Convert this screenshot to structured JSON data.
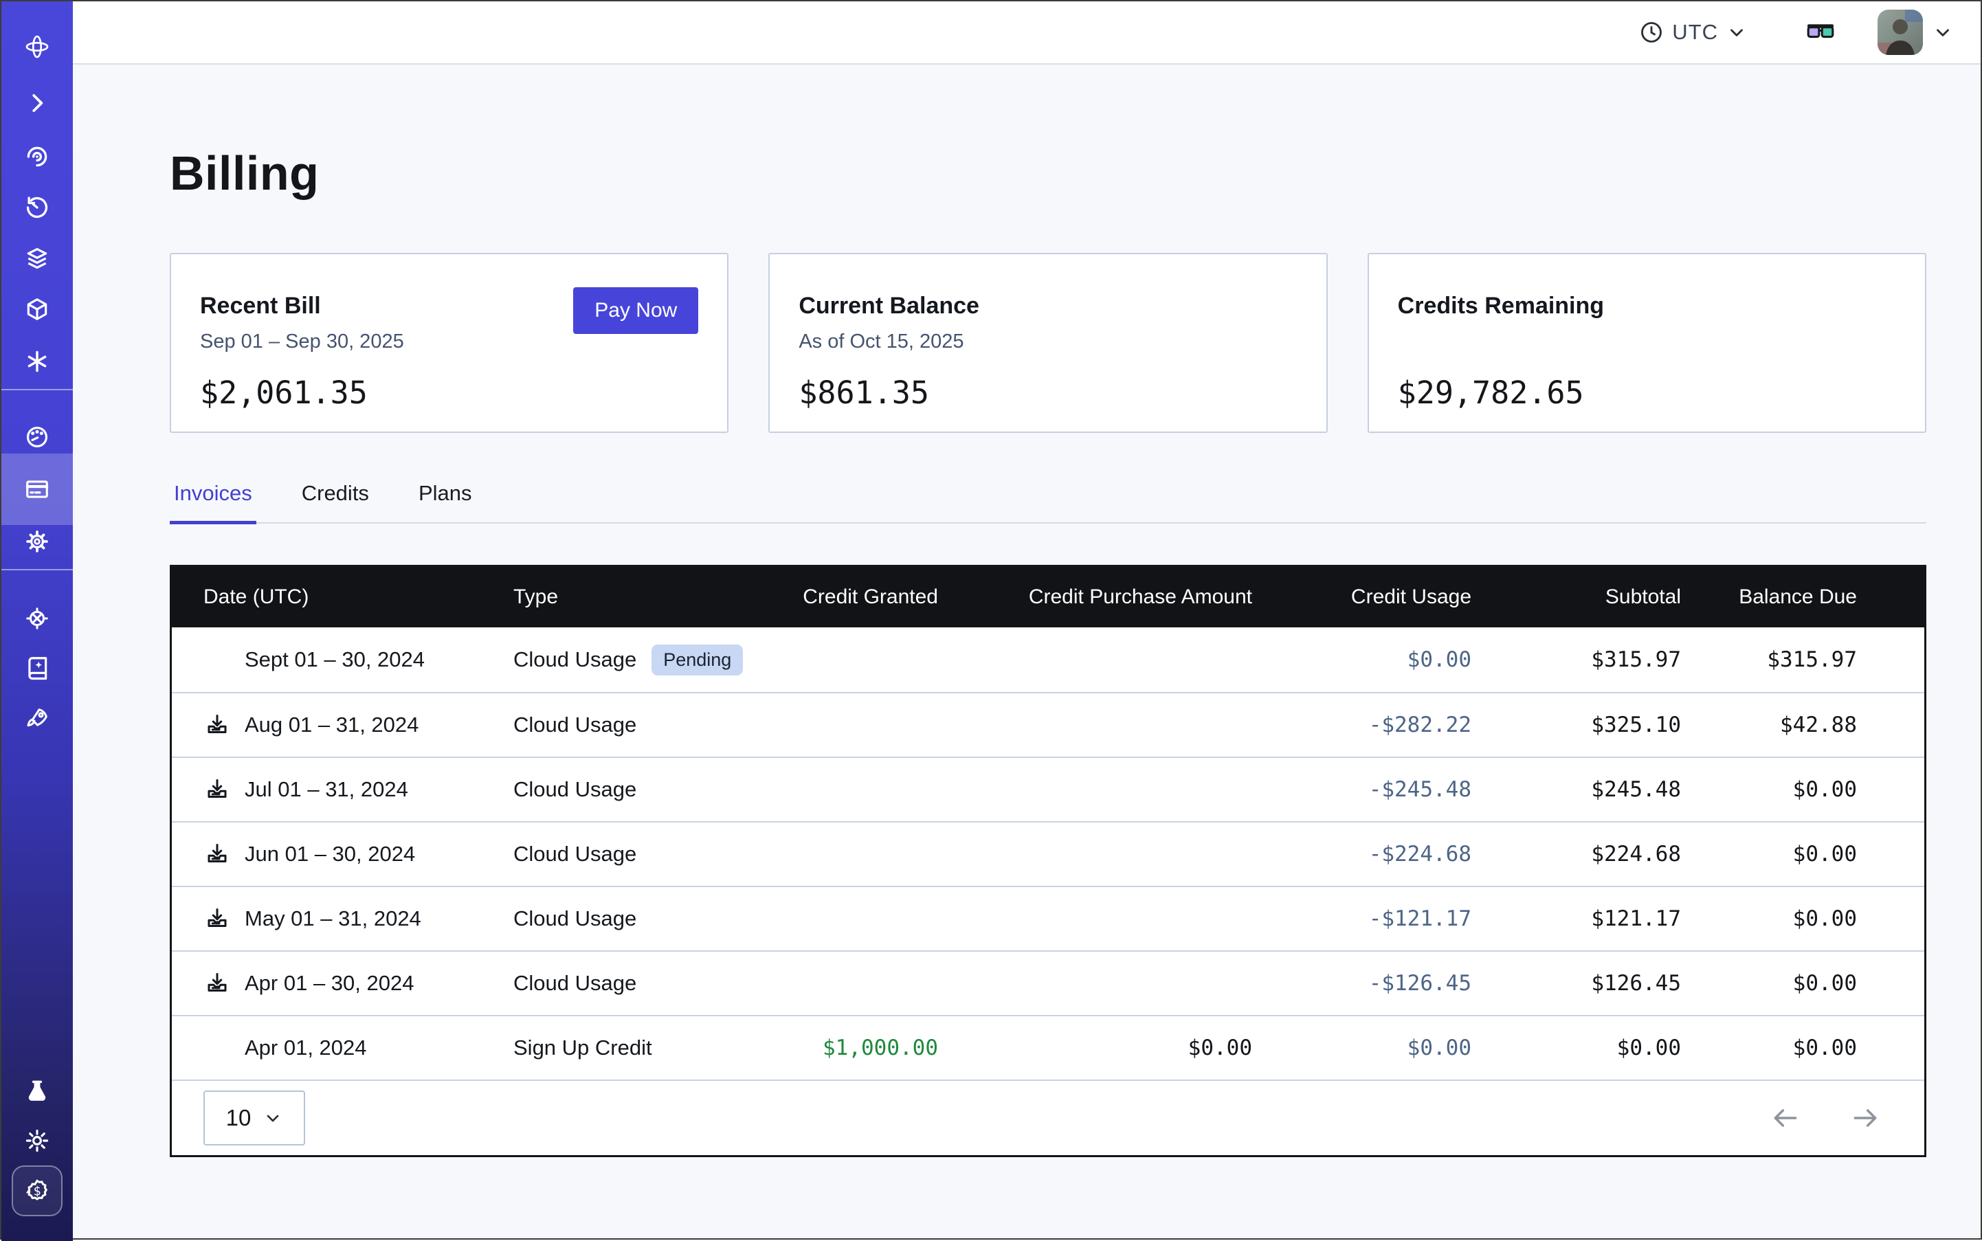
{
  "topbar": {
    "timezone_label": "UTC",
    "icons": [
      "clock-icon",
      "chevron-down-icon",
      "vision-glasses-icon",
      "user-avatar",
      "chevron-down-icon"
    ]
  },
  "sidebar": {
    "icons": [
      "brand-logo",
      "expand-chevron",
      "observe-eye",
      "history-timer",
      "layers",
      "cube",
      "asterisk",
      "usage-gauge",
      "billing-card",
      "settings-gear",
      "helm-wheel",
      "docs-book",
      "rocket",
      "labs-flask",
      "theme-sun",
      "credits-dollar-badge"
    ],
    "active_item": "billing-card"
  },
  "page": {
    "title": "Billing"
  },
  "cards": {
    "recent_bill": {
      "title": "Recent Bill",
      "period": "Sep 01 – Sep 30, 2025",
      "amount": "$2,061.35",
      "action_label": "Pay Now"
    },
    "current_balance": {
      "title": "Current Balance",
      "as_of": "As of Oct 15, 2025",
      "amount": "$861.35"
    },
    "credits_remaining": {
      "title": "Credits Remaining",
      "amount": "$29,782.65"
    }
  },
  "tabs": [
    {
      "label": "Invoices",
      "active": true
    },
    {
      "label": "Credits",
      "active": false
    },
    {
      "label": "Plans",
      "active": false
    }
  ],
  "table": {
    "columns": [
      "Date (UTC)",
      "Type",
      "Credit Granted",
      "Credit Purchase Amount",
      "Credit Usage",
      "Subtotal",
      "Balance Due"
    ],
    "rows": [
      {
        "date": "Sept 01 – 30, 2024",
        "type": "Cloud Usage",
        "badge": "Pending",
        "downloadable": false,
        "credit_granted": "",
        "credit_purchase": "",
        "credit_usage": "$0.00",
        "subtotal": "$315.97",
        "balance_due": "$315.97"
      },
      {
        "date": "Aug 01 – 31, 2024",
        "type": "Cloud Usage",
        "badge": "",
        "downloadable": true,
        "credit_granted": "",
        "credit_purchase": "",
        "credit_usage": "-$282.22",
        "subtotal": "$325.10",
        "balance_due": "$42.88"
      },
      {
        "date": "Jul 01 – 31, 2024",
        "type": "Cloud Usage",
        "badge": "",
        "downloadable": true,
        "credit_granted": "",
        "credit_purchase": "",
        "credit_usage": "-$245.48",
        "subtotal": "$245.48",
        "balance_due": "$0.00"
      },
      {
        "date": "Jun 01 – 30, 2024",
        "type": "Cloud Usage",
        "badge": "",
        "downloadable": true,
        "credit_granted": "",
        "credit_purchase": "",
        "credit_usage": "-$224.68",
        "subtotal": "$224.68",
        "balance_due": "$0.00"
      },
      {
        "date": "May 01 – 31, 2024",
        "type": "Cloud Usage",
        "badge": "",
        "downloadable": true,
        "credit_granted": "",
        "credit_purchase": "",
        "credit_usage": "-$121.17",
        "subtotal": "$121.17",
        "balance_due": "$0.00"
      },
      {
        "date": "Apr 01 – 30, 2024",
        "type": "Cloud Usage",
        "badge": "",
        "downloadable": true,
        "credit_granted": "",
        "credit_purchase": "",
        "credit_usage": "-$126.45",
        "subtotal": "$126.45",
        "balance_due": "$0.00"
      },
      {
        "date": "Apr 01, 2024",
        "type": "Sign Up Credit",
        "badge": "",
        "downloadable": false,
        "credit_granted": "$1,000.00",
        "credit_purchase": "$0.00",
        "credit_usage": "$0.00",
        "subtotal": "$0.00",
        "balance_due": "$0.00"
      }
    ],
    "pagination": {
      "page_size": "10"
    }
  },
  "colors": {
    "accent": "#4745d9",
    "sidebar_top": "#4946da",
    "sidebar_bottom": "#1b1a52",
    "badge_bg": "#c7d7f4",
    "credit_usage_text": "#4e6587",
    "credit_green": "#1e8a3c",
    "table_header_bg": "#121316"
  }
}
